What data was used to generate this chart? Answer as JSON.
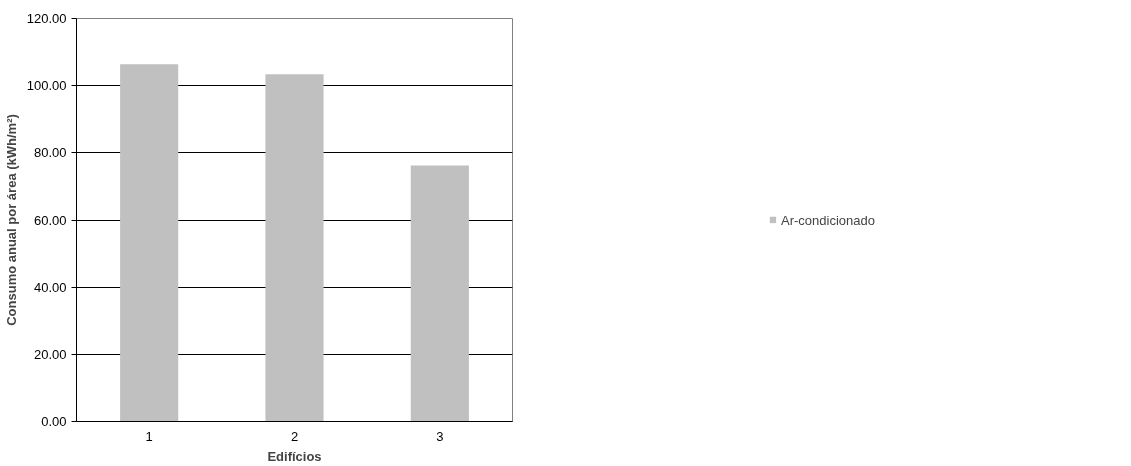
{
  "chart_data": {
    "type": "bar",
    "xlabel": "Edifícios",
    "ylabel": "Consumo anual por área (kWh/m²)",
    "categories": [
      "1",
      "2",
      "3"
    ],
    "series": [
      {
        "name": "Ar-condicionado",
        "color": "#c0c0c0",
        "values": [
          106.4,
          103.4,
          76.2
        ]
      }
    ],
    "ylim": [
      0,
      120
    ],
    "yticks": [
      {
        "value": 0,
        "label": "0.00"
      },
      {
        "value": 20,
        "label": "20.00"
      },
      {
        "value": 40,
        "label": "40.00"
      },
      {
        "value": 60,
        "label": "60.00"
      },
      {
        "value": 80,
        "label": "80.00"
      },
      {
        "value": 100,
        "label": "100.00"
      },
      {
        "value": 120,
        "label": "120.00"
      }
    ],
    "grid": "y",
    "legend": "right"
  }
}
